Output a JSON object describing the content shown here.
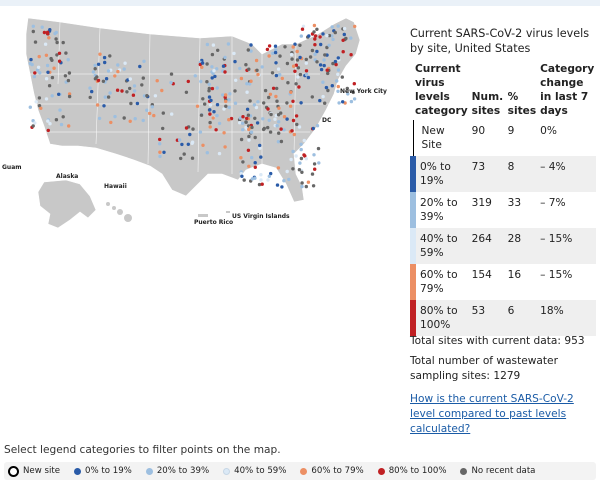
{
  "table": {
    "title": "Current SARS-CoV-2 virus levels by site, United States",
    "headers": [
      "Current virus levels category",
      "Num. sites",
      "% sites",
      "Category change in last 7 days"
    ],
    "rows": [
      {
        "category": "New Site",
        "sites": "90",
        "pct": "9",
        "change": "0%",
        "color": "#ffffff"
      },
      {
        "category": "0% to 19%",
        "sites": "73",
        "pct": "8",
        "change": "– 4%",
        "color": "#2a5ba8"
      },
      {
        "category": "20% to 39%",
        "sites": "319",
        "pct": "33",
        "change": "– 7%",
        "color": "#9dbfe0"
      },
      {
        "category": "40% to 59%",
        "sites": "264",
        "pct": "28",
        "change": "– 15%",
        "color": "#dbe9f6"
      },
      {
        "category": "60% to 79%",
        "sites": "154",
        "pct": "16",
        "change": "– 15%",
        "color": "#ec8f64"
      },
      {
        "category": "80% to 100%",
        "sites": "53",
        "pct": "6",
        "change": "18%",
        "color": "#c02023"
      }
    ]
  },
  "totals": {
    "current": "Total sites with current data: 953",
    "all": "Total number of wastewater sampling sites: 1279"
  },
  "link_text": "How is the current SARS-CoV-2 level compared to past levels calculated?",
  "hint": "Select legend categories to filter points on the map.",
  "map_labels": {
    "guam": "Guam",
    "alaska": "Alaska",
    "hawaii": "Hawaii",
    "puerto_rico": "Puerto Rico",
    "usvi": "US Virgin Islands",
    "nyc": "New York City",
    "dc": "DC"
  },
  "legend": [
    {
      "label": "New site",
      "color": "#ffffff",
      "ring": true
    },
    {
      "label": "0% to 19%",
      "color": "#2a5ba8"
    },
    {
      "label": "20% to 39%",
      "color": "#9dbfe0"
    },
    {
      "label": "40% to 59%",
      "color": "#dbe9f6"
    },
    {
      "label": "60% to 79%",
      "color": "#ec8f64"
    },
    {
      "label": "80% to 100%",
      "color": "#c02023"
    },
    {
      "label": "No recent data",
      "color": "#666666"
    }
  ]
}
